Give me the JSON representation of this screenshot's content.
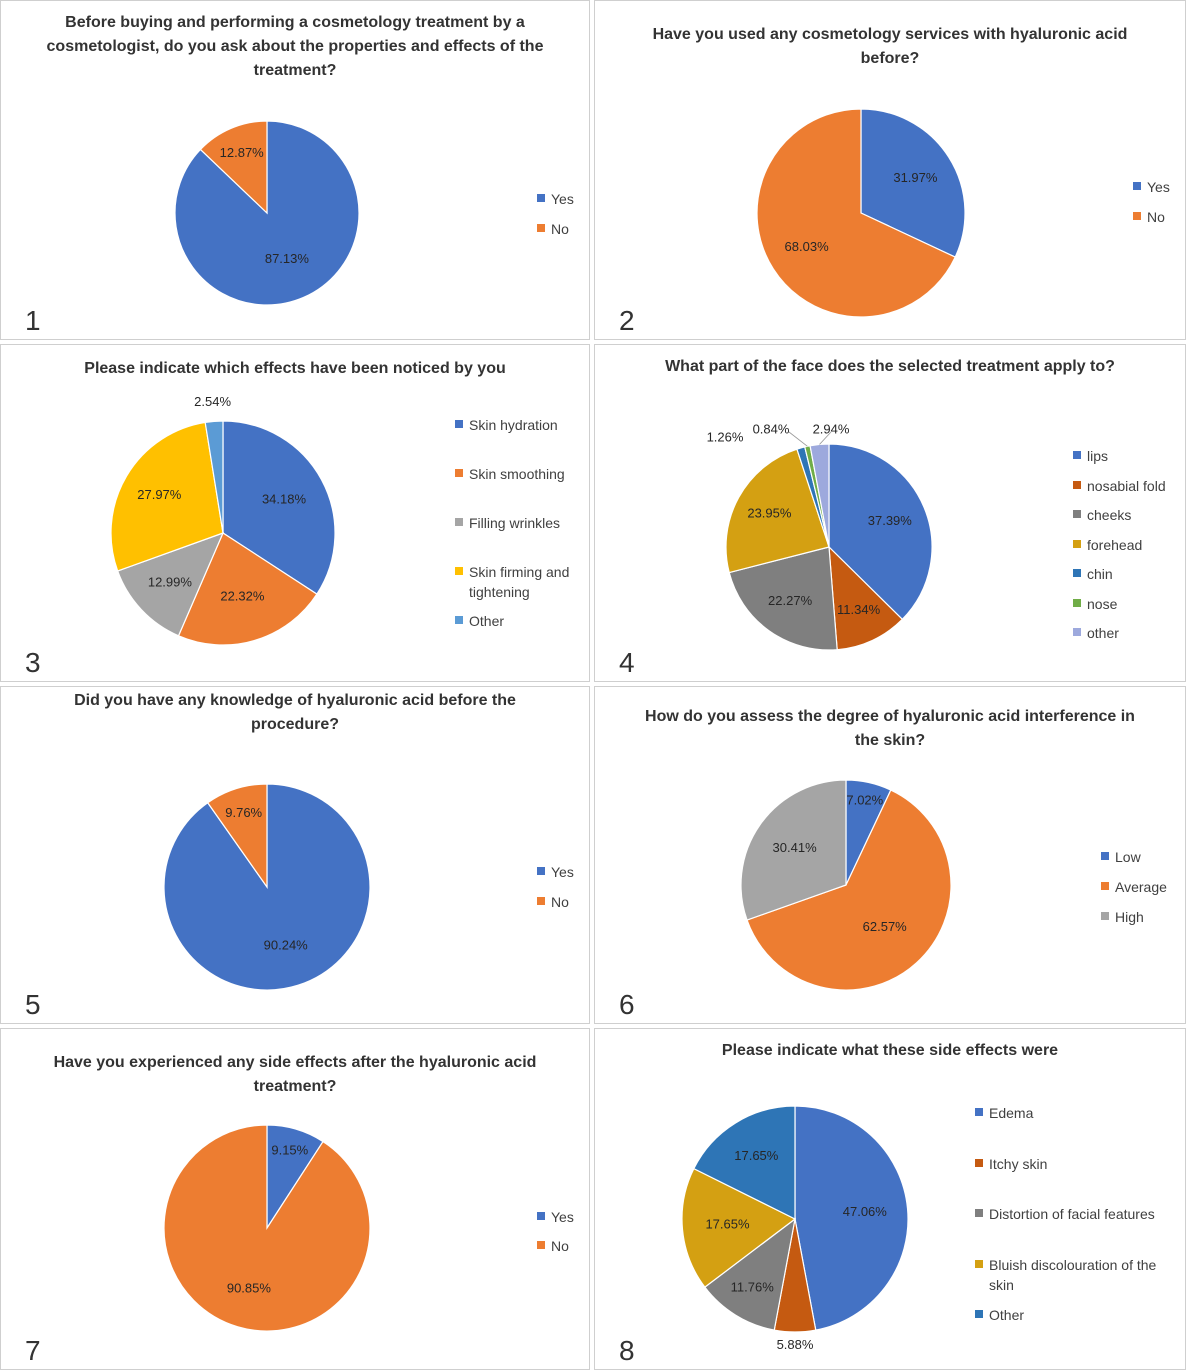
{
  "chart_data": [
    {
      "type": "pie",
      "number": "1",
      "title": "Before buying and performing a cosmetology treatment by a cosmetologist, do you ask about the properties and effects of the treatment?",
      "categories": [
        "Yes",
        "No"
      ],
      "values": [
        87.13,
        12.87
      ],
      "labels": [
        "87.13%",
        "12.87%"
      ],
      "colors": [
        "#4472C4",
        "#ED7D31"
      ],
      "legend_position": "right"
    },
    {
      "type": "pie",
      "number": "2",
      "title": "Have you used any cosmetology services with hyaluronic acid before?",
      "categories": [
        "Yes",
        "No"
      ],
      "values": [
        31.97,
        68.03
      ],
      "labels": [
        "31.97%",
        "68.03%"
      ],
      "colors": [
        "#4472C4",
        "#ED7D31"
      ],
      "legend_position": "right"
    },
    {
      "type": "pie",
      "number": "3",
      "title": "Please indicate which effects have been noticed by you",
      "categories": [
        "Skin hydration",
        "Skin smoothing",
        "Filling wrinkles",
        "Skin firming and tightening",
        "Other"
      ],
      "values": [
        34.18,
        22.32,
        12.99,
        27.97,
        2.54
      ],
      "labels": [
        "34.18%",
        "22.32%",
        "12.99%",
        "27.97%",
        "2.54%"
      ],
      "colors": [
        "#4472C4",
        "#ED7D31",
        "#A5A5A5",
        "#FFC000",
        "#5B9BD5"
      ],
      "legend_position": "right"
    },
    {
      "type": "pie",
      "number": "4",
      "title": "What part of the face does the selected treatment apply to?",
      "categories": [
        "lips",
        "nosabial fold",
        "cheeks",
        "forehead",
        "chin",
        "nose",
        "other"
      ],
      "values": [
        37.39,
        11.34,
        22.27,
        23.95,
        1.26,
        0.84,
        2.94
      ],
      "labels": [
        "37.39%",
        "11.34%",
        "22.27%",
        "23.95%",
        "1.26%",
        "0.84%",
        "2.94%"
      ],
      "colors": [
        "#4472C4",
        "#C55A11",
        "#7F7F7F",
        "#D4A012",
        "#2E75B6",
        "#70AD47",
        "#9DA9DD"
      ],
      "legend_position": "right"
    },
    {
      "type": "pie",
      "number": "5",
      "title": "Did you have any knowledge of hyaluronic acid before the procedure?",
      "categories": [
        "Yes",
        "No"
      ],
      "values": [
        90.24,
        9.76
      ],
      "labels": [
        "90.24%",
        "9.76%"
      ],
      "colors": [
        "#4472C4",
        "#ED7D31"
      ],
      "legend_position": "right"
    },
    {
      "type": "pie",
      "number": "6",
      "title": "How do you assess the degree of hyaluronic acid interference in the skin?",
      "categories": [
        "Low",
        "Average",
        "High"
      ],
      "values": [
        7.02,
        62.57,
        30.41
      ],
      "labels": [
        "7.02%",
        "62.57%",
        "30.41%"
      ],
      "colors": [
        "#4472C4",
        "#ED7D31",
        "#A5A5A5"
      ],
      "legend_position": "right"
    },
    {
      "type": "pie",
      "number": "7",
      "title": "Have you experienced any side effects after the hyaluronic acid treatment?",
      "categories": [
        "Yes",
        "No"
      ],
      "values": [
        9.15,
        90.85
      ],
      "labels": [
        "9.15%",
        "90.85%"
      ],
      "colors": [
        "#4472C4",
        "#ED7D31"
      ],
      "legend_position": "right"
    },
    {
      "type": "pie",
      "number": "8",
      "title": "Please indicate what these side effects were",
      "categories": [
        "Edema",
        "Itchy skin",
        "Distortion of facial features",
        "Bluish discolouration of the skin",
        "Other"
      ],
      "values": [
        47.06,
        5.88,
        11.76,
        17.65,
        17.65
      ],
      "labels": [
        "47.06%",
        "5.88%",
        "11.76%",
        "17.65%",
        "17.65%"
      ],
      "colors": [
        "#4472C4",
        "#C55A11",
        "#7F7F7F",
        "#D4A012",
        "#2E75B6"
      ],
      "legend_position": "right"
    }
  ]
}
